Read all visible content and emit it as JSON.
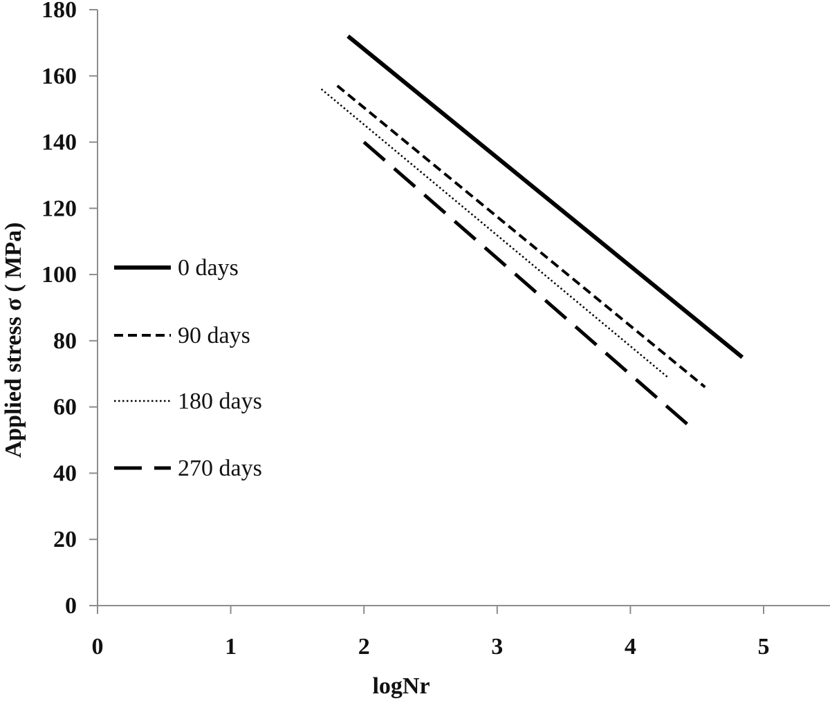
{
  "chart_data": {
    "type": "line",
    "xlabel": "logNr",
    "ylabel": "Applied  stress σ ( MPa)",
    "xlim": [
      0,
      5.55
    ],
    "ylim": [
      0,
      180
    ],
    "x_ticks": [
      0,
      1,
      2,
      3,
      4,
      5
    ],
    "y_ticks": [
      0,
      20,
      40,
      60,
      80,
      100,
      120,
      140,
      160,
      180
    ],
    "x_tick_labels": [
      "0",
      "1",
      "2",
      "3",
      "4",
      "5"
    ],
    "y_tick_labels": [
      "0",
      "20",
      "40",
      "60",
      "80",
      "100",
      "120",
      "140",
      "160",
      "180"
    ],
    "grid": false,
    "legend_position": "left",
    "series": [
      {
        "name": "0 days",
        "style": "solid",
        "color": "#000000",
        "x": [
          1.88,
          4.84
        ],
        "y": [
          172,
          75
        ]
      },
      {
        "name": "90 days",
        "style": "short-dash",
        "color": "#000000",
        "x": [
          1.8,
          4.56
        ],
        "y": [
          157,
          66
        ]
      },
      {
        "name": "180 days",
        "style": "dotted",
        "color": "#000000",
        "x": [
          1.68,
          4.28
        ],
        "y": [
          156,
          69
        ]
      },
      {
        "name": "270 days",
        "style": "long-dash",
        "color": "#000000",
        "x": [
          2.0,
          4.45
        ],
        "y": [
          140,
          54
        ]
      }
    ]
  }
}
